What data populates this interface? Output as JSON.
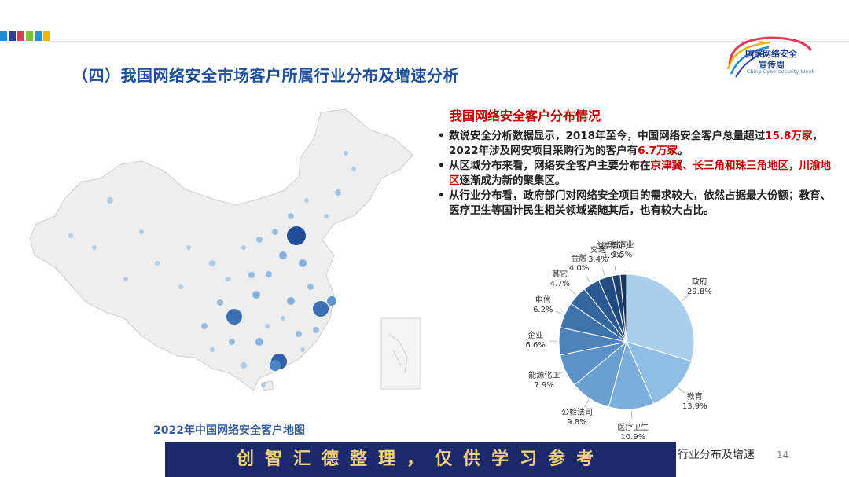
{
  "deco_colors": [
    "#1f8bd6",
    "#2e3f9e",
    "#e23b5a",
    "#7fbf3f",
    "#1b9ad6",
    "#f0b400"
  ],
  "logo": {
    "line1": "国家网络安全",
    "line2": "宣传周",
    "sub": "China Cybersecurity Week"
  },
  "page_title": "（四）我国网络安全市场客户所属行业分布及增速分析",
  "section_title": "我国网络安全客户分布情况",
  "bullets": {
    "b1_a": "数说安全分析数据显示，2018年至今，中国网络安全客户总量超过",
    "b1_b": "15.8万家",
    "b1_c": "，2022年涉及网安项目采购行为的客户有",
    "b1_d": "6.7万家",
    "b1_e": "。",
    "b2_a": "从区域分布来看，网络安全客户主要分布在",
    "b2_b": "京津冀、长三角和珠三角地区，川渝地区",
    "b2_c": "逐渐成为新的聚集区。",
    "b3": "从行业分布看，政府部门对网络安全项目的需求较大，依然占据最大份额；教育、医疗卫生等国计民生相关领域紧随其后，也有较大占比。",
    "dot": "•"
  },
  "map_caption": "2022年中国网络安全客户地图",
  "footer": {
    "watermark": "创智汇德整理，仅供学习参考",
    "tail": "行业分布及增速",
    "page": "14"
  },
  "chart_data": {
    "type": "pie",
    "categories": [
      "政府",
      "教育",
      "医疗卫生",
      "公检法司",
      "能源化工",
      "企业",
      "电信",
      "其它",
      "金融",
      "交通",
      "党委部门",
      "制造业"
    ],
    "values": [
      29.8,
      13.9,
      10.9,
      9.8,
      7.9,
      6.6,
      6.2,
      4.7,
      4.0,
      3.4,
      1.9,
      1.5
    ],
    "labels": [
      "29.8%",
      "13.9%",
      "10.9%",
      "9.8%",
      "7.9%",
      "6.6%",
      "6.2%",
      "4.7%",
      "4.0%",
      "3.4%",
      "1.9%",
      "1.5%"
    ],
    "colors": [
      "#a9cfec",
      "#8fbde4",
      "#7aaedb",
      "#6a9fd2",
      "#5b91c8",
      "#4c81bb",
      "#3e72ad",
      "#33659f",
      "#2a5890",
      "#224b80",
      "#1b3f70",
      "#15345f"
    ]
  }
}
